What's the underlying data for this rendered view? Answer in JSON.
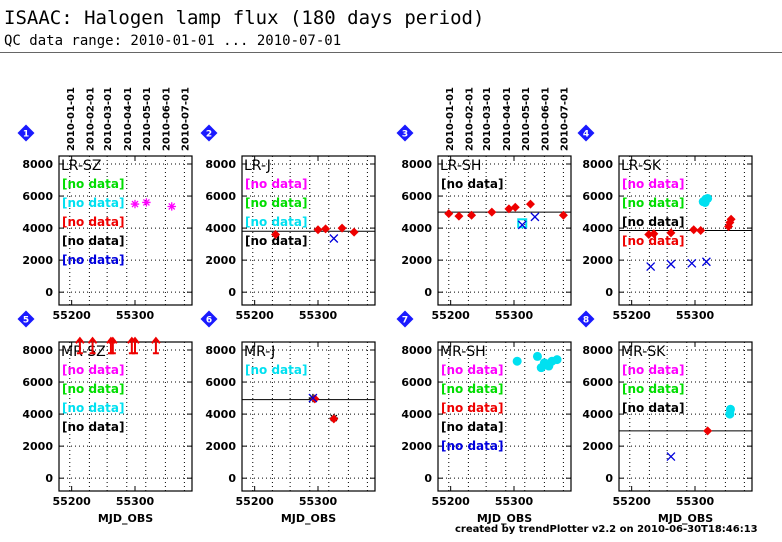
{
  "header": {
    "title": "ISAAC: Halogen lamp flux (180 days period)",
    "subtitle": "QC data range: 2010-01-01 ... 2010-07-01",
    "footer": "created by trendPlotter v2.2 on 2010-06-30T18:46:13"
  },
  "colors": {
    "magenta": "#ff00ff",
    "green": "#00dd00",
    "cyan": "#00e0f0",
    "red": "#ee0000",
    "black": "#000000",
    "blue": "#0000dd",
    "badge": "#1a1aff"
  },
  "chart_data": [
    {
      "type": "scatter",
      "number": "1",
      "label": "LR-SZ",
      "xlabel": "",
      "xlim": [
        55180,
        55390
      ],
      "ylim": [
        -800,
        8500
      ],
      "xticks": [
        55200,
        55300
      ],
      "yticks": [
        0,
        2000,
        4000,
        6000,
        8000
      ],
      "date_ticks": [
        "2010-01-01",
        "2010-02-01",
        "2010-03-01",
        "2010-04-01",
        "2010-05-01",
        "2010-06-01",
        "2010-07-01"
      ],
      "date_mjd": [
        55197,
        55228,
        55256,
        55287,
        55317,
        55348,
        55378
      ],
      "ref_line": null,
      "no_data": [
        {
          "text": "[no data]",
          "color": "green"
        },
        {
          "text": "[no data]",
          "color": "cyan"
        },
        {
          "text": "[no data]",
          "color": "red"
        },
        {
          "text": "[no data]",
          "color": "black"
        },
        {
          "text": "[no data]",
          "color": "blue"
        }
      ],
      "series": [
        {
          "color": "magenta",
          "marker": "asterisk",
          "x": [
            55300,
            55318,
            55358
          ],
          "y": [
            5500,
            5600,
            5350
          ]
        }
      ]
    },
    {
      "type": "scatter",
      "number": "2",
      "label": "LR-J",
      "xlabel": "",
      "xlim": [
        55180,
        55390
      ],
      "ylim": [
        -800,
        8500
      ],
      "xticks": [
        55200,
        55300
      ],
      "yticks": [
        0,
        2000,
        4000,
        6000,
        8000
      ],
      "date_ticks": [],
      "date_mjd": [
        55197,
        55228,
        55256,
        55287,
        55317,
        55348,
        55378
      ],
      "ref_line": 3800,
      "no_data": [
        {
          "text": "[no data]",
          "color": "magenta"
        },
        {
          "text": "[no data]",
          "color": "green"
        },
        {
          "text": "[no data]",
          "color": "cyan"
        },
        {
          "text": "[no data]",
          "color": "black"
        }
      ],
      "series": [
        {
          "color": "red",
          "marker": "diamond",
          "x": [
            55233,
            55300,
            55312,
            55338,
            55357
          ],
          "y": [
            3600,
            3900,
            3950,
            4000,
            3750
          ]
        },
        {
          "color": "blue",
          "marker": "x",
          "x": [
            55325
          ],
          "y": [
            3350
          ]
        }
      ]
    },
    {
      "type": "scatter",
      "number": "3",
      "label": "LR-SH",
      "xlabel": "",
      "xlim": [
        55180,
        55390
      ],
      "ylim": [
        -800,
        8500
      ],
      "xticks": [
        55200,
        55300
      ],
      "yticks": [
        0,
        2000,
        4000,
        6000,
        8000
      ],
      "date_ticks": [
        "2010-01-01",
        "2010-02-01",
        "2010-03-01",
        "2010-04-01",
        "2010-05-01",
        "2010-06-01",
        "2010-07-01"
      ],
      "date_mjd": [
        55197,
        55228,
        55256,
        55287,
        55317,
        55348,
        55378
      ],
      "ref_line": 5000,
      "no_data": [
        {
          "text": "[no data]",
          "color": "black"
        }
      ],
      "series": [
        {
          "color": "red",
          "marker": "diamond",
          "x": [
            55197,
            55213,
            55233,
            55265,
            55292,
            55302,
            55326,
            55378
          ],
          "y": [
            4900,
            4750,
            4800,
            5000,
            5200,
            5300,
            5500,
            4800
          ]
        },
        {
          "color": "cyan",
          "marker": "square",
          "x": [
            55313
          ],
          "y": [
            4300
          ]
        },
        {
          "color": "blue",
          "marker": "x",
          "x": [
            55313,
            55333
          ],
          "y": [
            4200,
            4700
          ]
        }
      ]
    },
    {
      "type": "scatter",
      "number": "4",
      "label": "LR-SK",
      "xlabel": "",
      "xlim": [
        55180,
        55390
      ],
      "ylim": [
        -800,
        8500
      ],
      "xticks": [
        55200,
        55300
      ],
      "yticks": [
        0,
        2000,
        4000,
        6000,
        8000
      ],
      "date_ticks": [],
      "date_mjd": [
        55197,
        55228,
        55256,
        55287,
        55317,
        55348,
        55378
      ],
      "ref_line": 3850,
      "no_data": [
        {
          "text": "[no data]",
          "color": "magenta"
        },
        {
          "text": "[no data]",
          "color": "green"
        },
        {
          "text": "[no data]",
          "color": "black"
        },
        {
          "text": "[no data]",
          "color": "red"
        }
      ],
      "series": [
        {
          "color": "red",
          "marker": "diamond",
          "x": [
            55227,
            55235,
            55262,
            55298,
            55309,
            55353,
            55355,
            55357
          ],
          "y": [
            3600,
            3650,
            3700,
            3900,
            3850,
            4100,
            4350,
            4550
          ]
        },
        {
          "color": "cyan",
          "marker": "dot",
          "x": [
            55313,
            55317,
            55320,
            55316
          ],
          "y": [
            5650,
            5800,
            5850,
            5600
          ]
        },
        {
          "color": "blue",
          "marker": "x",
          "x": [
            55230,
            55262,
            55295,
            55318
          ],
          "y": [
            1600,
            1750,
            1800,
            1900
          ]
        }
      ]
    },
    {
      "type": "scatter",
      "number": "5",
      "label": "MR-SZ",
      "xlabel": "MJD_OBS",
      "xlim": [
        55180,
        55390
      ],
      "ylim": [
        -800,
        8500
      ],
      "xticks": [
        55200,
        55300
      ],
      "yticks": [
        0,
        2000,
        4000,
        6000,
        8000
      ],
      "date_ticks": [],
      "date_mjd": [
        55197,
        55228,
        55256,
        55287,
        55317,
        55348,
        55378
      ],
      "ref_line": null,
      "no_data": [
        {
          "text": "[no data]",
          "color": "magenta"
        },
        {
          "text": "[no data]",
          "color": "green"
        },
        {
          "text": "[no data]",
          "color": "cyan"
        },
        {
          "text": "[no data]",
          "color": "black"
        }
      ],
      "series": [
        {
          "color": "red",
          "marker": "uparrow",
          "x": [
            55213,
            55233,
            55262,
            55265,
            55295,
            55300,
            55333
          ],
          "y": [
            8300,
            8300,
            8300,
            8300,
            8300,
            8300,
            8300
          ]
        }
      ]
    },
    {
      "type": "scatter",
      "number": "6",
      "label": "MR-J",
      "xlabel": "MJD_OBS",
      "xlim": [
        55180,
        55390
      ],
      "ylim": [
        -800,
        8500
      ],
      "xticks": [
        55200,
        55300
      ],
      "yticks": [
        0,
        2000,
        4000,
        6000,
        8000
      ],
      "date_ticks": [],
      "date_mjd": [
        55197,
        55228,
        55256,
        55287,
        55317,
        55348,
        55378
      ],
      "ref_line": 4900,
      "no_data": [
        {
          "text": "[no data]",
          "color": "cyan"
        }
      ],
      "series": [
        {
          "color": "black",
          "marker": "asterisk",
          "x": [
            55292,
            55325
          ],
          "y": [
            5000,
            3750
          ]
        },
        {
          "color": "red",
          "marker": "diamond",
          "x": [
            55295,
            55325
          ],
          "y": [
            4950,
            3700
          ]
        },
        {
          "color": "blue",
          "marker": "x",
          "x": [
            55292
          ],
          "y": [
            5000
          ]
        }
      ]
    },
    {
      "type": "scatter",
      "number": "7",
      "label": "MR-SH",
      "xlabel": "MJD_OBS",
      "xlim": [
        55180,
        55390
      ],
      "ylim": [
        -800,
        8500
      ],
      "xticks": [
        55200,
        55300
      ],
      "yticks": [
        0,
        2000,
        4000,
        6000,
        8000
      ],
      "date_ticks": [],
      "date_mjd": [
        55197,
        55228,
        55256,
        55287,
        55317,
        55348,
        55378
      ],
      "ref_line": null,
      "no_data": [
        {
          "text": "[no data]",
          "color": "magenta"
        },
        {
          "text": "[no data]",
          "color": "green"
        },
        {
          "text": "[no data]",
          "color": "red"
        },
        {
          "text": "[no data]",
          "color": "black"
        },
        {
          "text": "[no data]",
          "color": "blue"
        }
      ],
      "series": [
        {
          "color": "cyan",
          "marker": "dot",
          "x": [
            55305,
            55337,
            55343,
            55348,
            55355,
            55360,
            55368
          ],
          "y": [
            7300,
            7600,
            6900,
            7200,
            7000,
            7300,
            7400
          ]
        }
      ]
    },
    {
      "type": "scatter",
      "number": "8",
      "label": "MR-SK",
      "xlabel": "MJD_OBS",
      "xlim": [
        55180,
        55390
      ],
      "ylim": [
        -800,
        8500
      ],
      "xticks": [
        55200,
        55300
      ],
      "yticks": [
        0,
        2000,
        4000,
        6000,
        8000
      ],
      "date_ticks": [],
      "date_mjd": [
        55197,
        55228,
        55256,
        55287,
        55317,
        55348,
        55378
      ],
      "ref_line": 2950,
      "no_data": [
        {
          "text": "[no data]",
          "color": "magenta"
        },
        {
          "text": "[no data]",
          "color": "green"
        },
        {
          "text": "[no data]",
          "color": "black"
        }
      ],
      "series": [
        {
          "color": "red",
          "marker": "diamond",
          "x": [
            55320
          ],
          "y": [
            2950
          ]
        },
        {
          "color": "cyan",
          "marker": "dot",
          "x": [
            55355,
            55356
          ],
          "y": [
            4000,
            4300
          ]
        },
        {
          "color": "blue",
          "marker": "x",
          "x": [
            55262
          ],
          "y": [
            1350
          ]
        }
      ]
    }
  ]
}
